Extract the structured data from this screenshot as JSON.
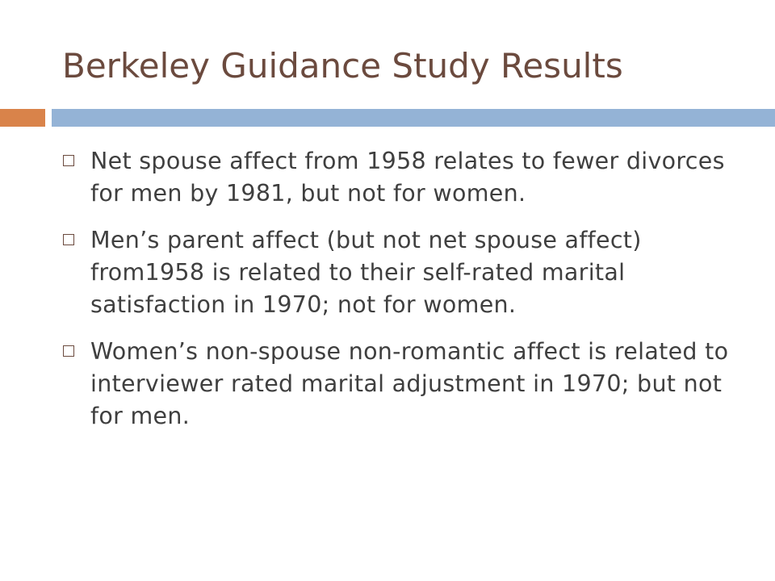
{
  "slide": {
    "title": "Berkeley Guidance Study Results",
    "bullet_icon": "square-outline-bullet-icon",
    "bullets": [
      {
        "text": "Net spouse affect from 1958 relates to fewer divorces for men by 1981, but not for women."
      },
      {
        "text": "Men’s parent affect (but not net spouse affect) from1958 is related to their self-rated marital satisfaction in 1970; not for women."
      },
      {
        "text": "Women’s non-spouse non-romantic affect is related to interviewer rated marital adjustment in 1970; but not for men."
      }
    ]
  },
  "colors": {
    "title": "#6b4a3e",
    "body_text": "#3f3f3f",
    "accent_orange": "#d9834a",
    "accent_blue": "#94b3d6",
    "background": "#ffffff"
  }
}
